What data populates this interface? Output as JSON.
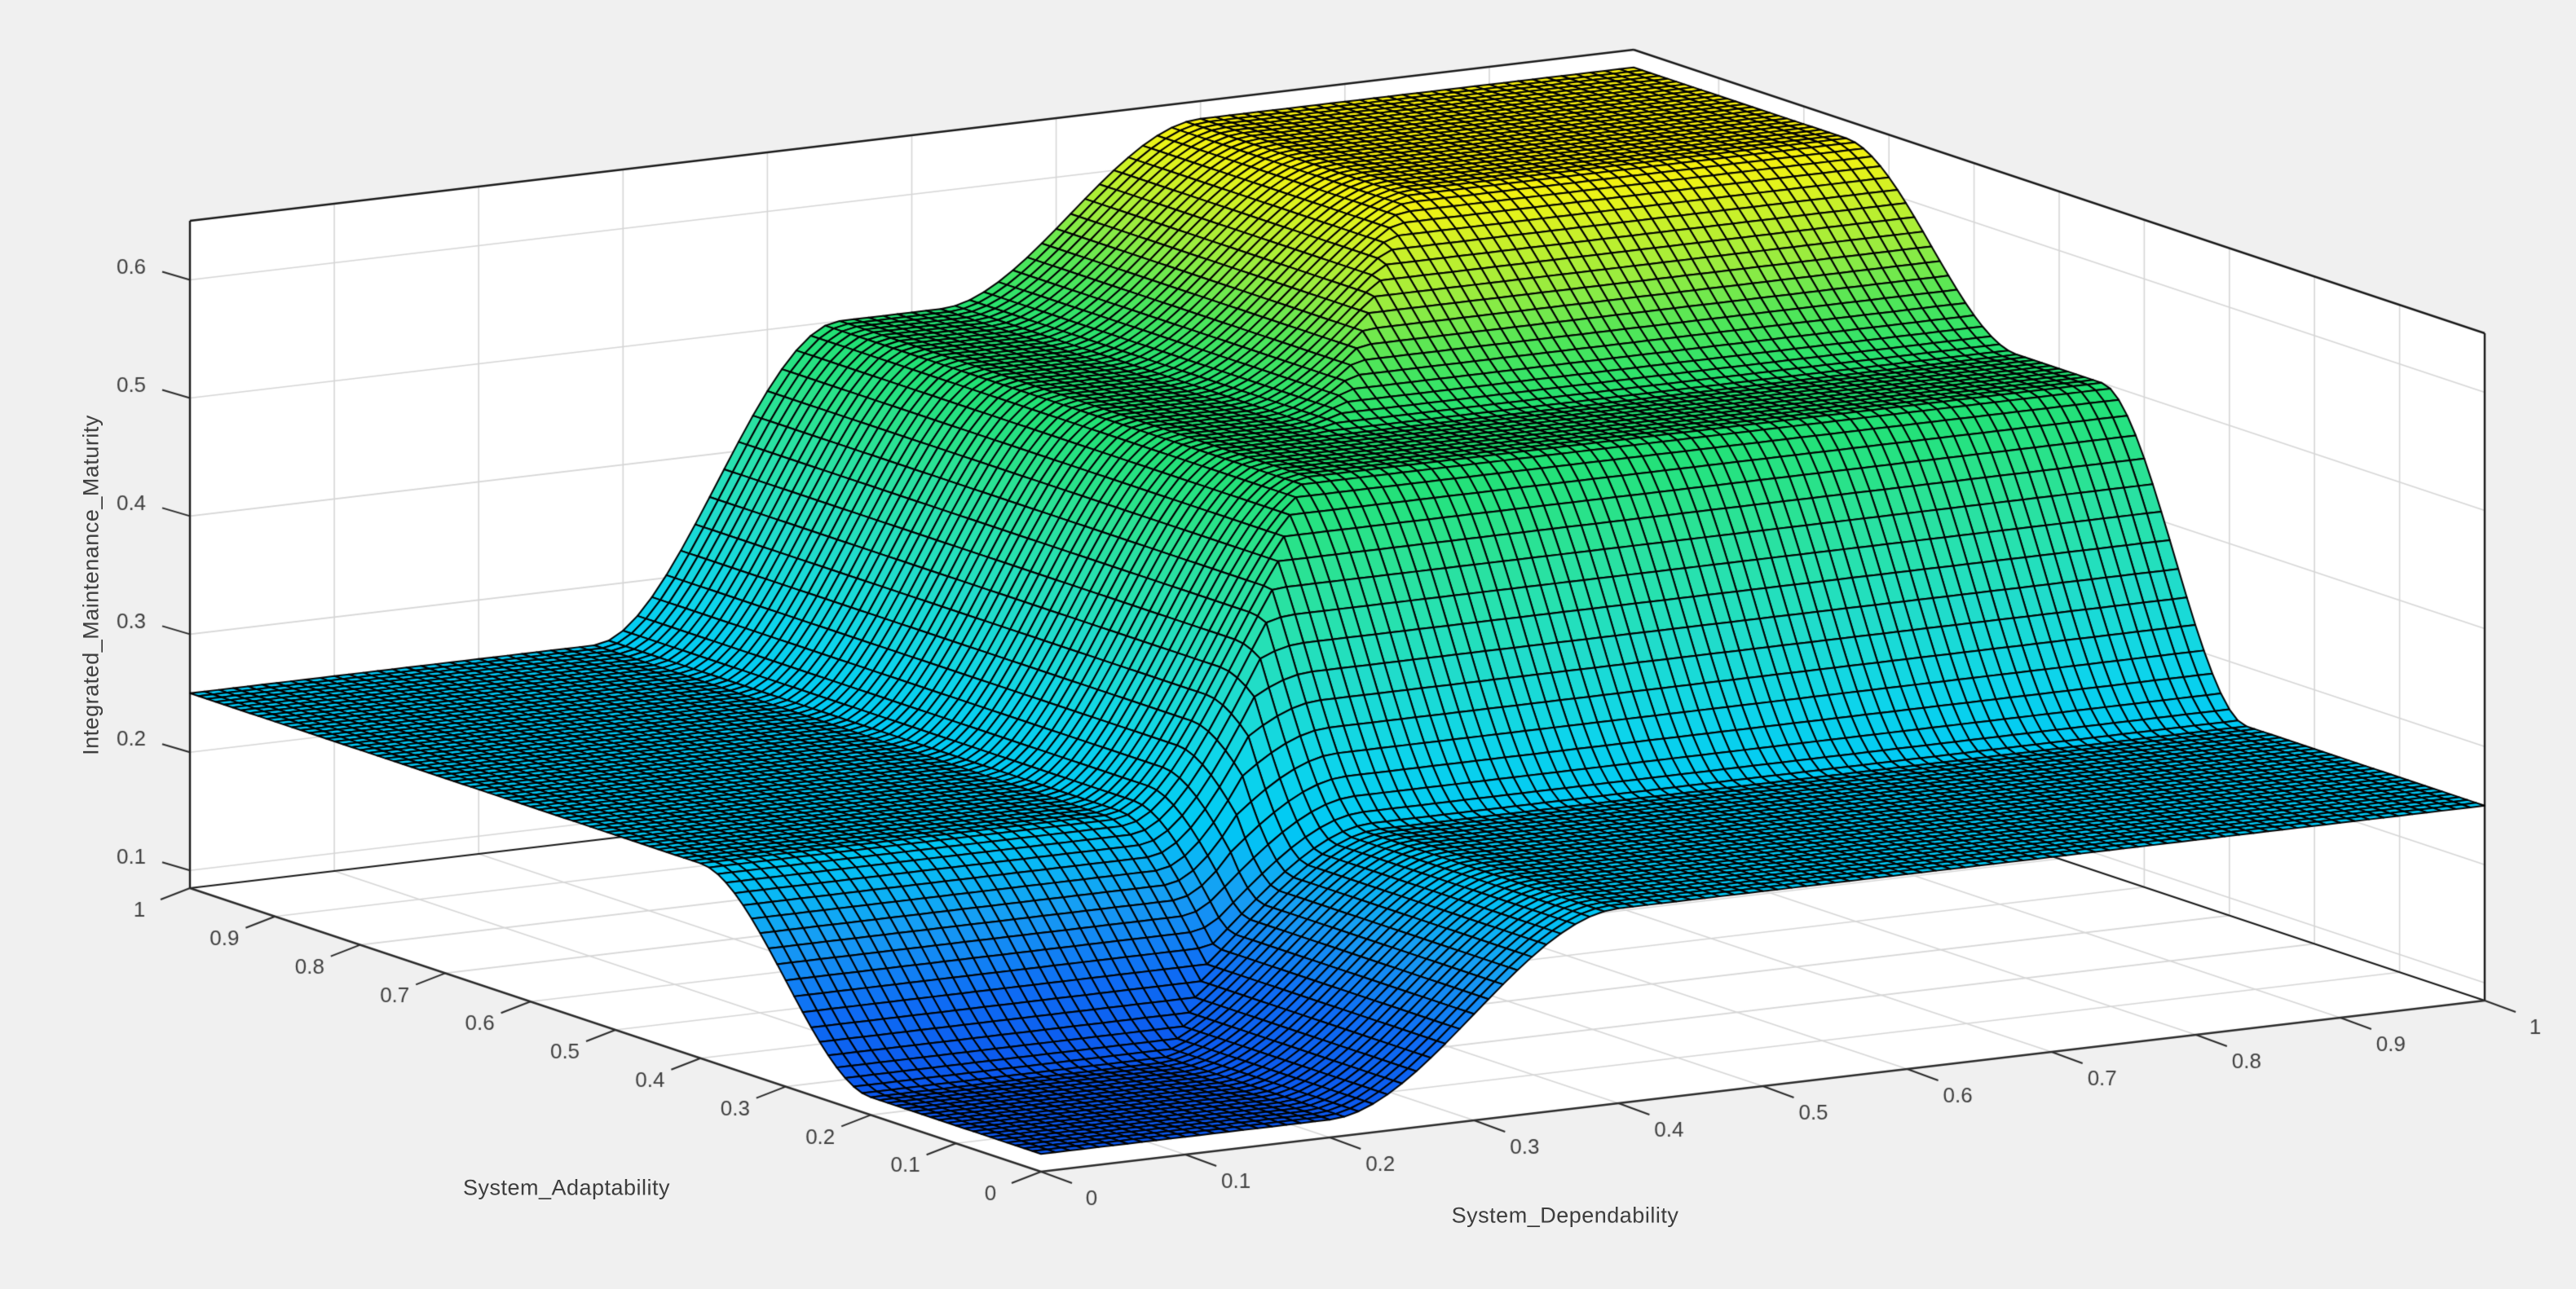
{
  "figure": {
    "background": "#f0f0f0",
    "wall_color": "#ffffff",
    "grid_color": "#d6d6d6",
    "box_edge_color": "#1a1a1a",
    "tick_text_color": "#404040",
    "label_text_color": "#3d3d3d"
  },
  "chart_data": {
    "type": "surface",
    "title": "",
    "xlabel": "System_Dependability",
    "ylabel": "System_Adaptability",
    "zlabel": "Integrated_Maintenance_Maturity",
    "xlim": [
      0,
      1
    ],
    "ylim": [
      0,
      1
    ],
    "zlim": [
      0.085,
      0.65
    ],
    "x_ticks": [
      0,
      0.1,
      0.2,
      0.3,
      0.4,
      0.5,
      0.6,
      0.7,
      0.8,
      0.9,
      1
    ],
    "y_ticks": [
      0,
      0.1,
      0.2,
      0.3,
      0.4,
      0.5,
      0.6,
      0.7,
      0.8,
      0.9,
      1
    ],
    "z_ticks": [
      0.1,
      0.2,
      0.3,
      0.4,
      0.5,
      0.6
    ],
    "grid_on": true,
    "legend": null,
    "grid_n": 101,
    "surface_model": {
      "base_level": 0.25,
      "dip_level": 0.1,
      "mid_level": 0.5,
      "top_level": 0.635,
      "dip_rise": [
        0.2,
        0.4
      ],
      "mid_rise": [
        0.28,
        0.45
      ],
      "top_rise_x": [
        0.52,
        0.7
      ],
      "top_rise_y": [
        0.55,
        0.75
      ]
    },
    "sample_x": [
      0,
      0.1,
      0.2,
      0.3,
      0.4,
      0.5,
      0.6,
      0.7,
      0.8,
      0.9,
      1
    ],
    "sample_y": [
      0,
      0.1,
      0.2,
      0.3,
      0.4,
      0.5,
      0.6,
      0.7,
      0.8,
      0.9,
      1
    ],
    "z_matrix": [
      [
        0.1,
        0.1,
        0.1,
        0.175,
        0.25,
        0.25,
        0.25,
        0.25,
        0.25,
        0.25,
        0.25
      ],
      [
        0.1,
        0.1,
        0.1,
        0.175,
        0.25,
        0.25,
        0.25,
        0.25,
        0.25,
        0.25,
        0.25
      ],
      [
        0.1,
        0.1,
        0.1,
        0.175,
        0.25,
        0.25,
        0.25,
        0.25,
        0.25,
        0.25,
        0.25
      ],
      [
        0.175,
        0.175,
        0.175,
        0.185,
        0.26,
        0.26,
        0.26,
        0.26,
        0.26,
        0.26,
        0.26
      ],
      [
        0.25,
        0.25,
        0.25,
        0.26,
        0.448,
        0.448,
        0.448,
        0.448,
        0.448,
        0.448,
        0.448
      ],
      [
        0.25,
        0.25,
        0.25,
        0.26,
        0.448,
        0.5,
        0.5,
        0.5,
        0.5,
        0.5,
        0.5
      ],
      [
        0.25,
        0.25,
        0.25,
        0.26,
        0.448,
        0.5,
        0.52,
        0.52,
        0.52,
        0.52,
        0.52
      ],
      [
        0.25,
        0.25,
        0.25,
        0.26,
        0.448,
        0.5,
        0.554,
        0.61,
        0.61,
        0.61,
        0.61
      ],
      [
        0.25,
        0.25,
        0.25,
        0.26,
        0.448,
        0.5,
        0.554,
        0.63,
        0.63,
        0.63,
        0.63
      ],
      [
        0.25,
        0.25,
        0.25,
        0.26,
        0.448,
        0.5,
        0.554,
        0.63,
        0.63,
        0.63,
        0.63
      ],
      [
        0.25,
        0.25,
        0.25,
        0.26,
        0.448,
        0.5,
        0.554,
        0.63,
        0.63,
        0.63,
        0.63
      ]
    ],
    "colormap_stops": [
      [
        0.1,
        "#0b57ee"
      ],
      [
        0.15,
        "#0e6cf4"
      ],
      [
        0.2,
        "#169df4"
      ],
      [
        0.25,
        "#00c9f5"
      ],
      [
        0.3,
        "#0fd6e9"
      ],
      [
        0.35,
        "#1fdccd"
      ],
      [
        0.4,
        "#28e1ad"
      ],
      [
        0.45,
        "#2ae28e"
      ],
      [
        0.5,
        "#21e172"
      ],
      [
        0.54,
        "#57e756"
      ],
      [
        0.57,
        "#97ec40"
      ],
      [
        0.6,
        "#c6f02b"
      ],
      [
        0.62,
        "#e7f31a"
      ],
      [
        0.635,
        "#f8f00d"
      ]
    ],
    "mesh_line_color": "#000000"
  }
}
